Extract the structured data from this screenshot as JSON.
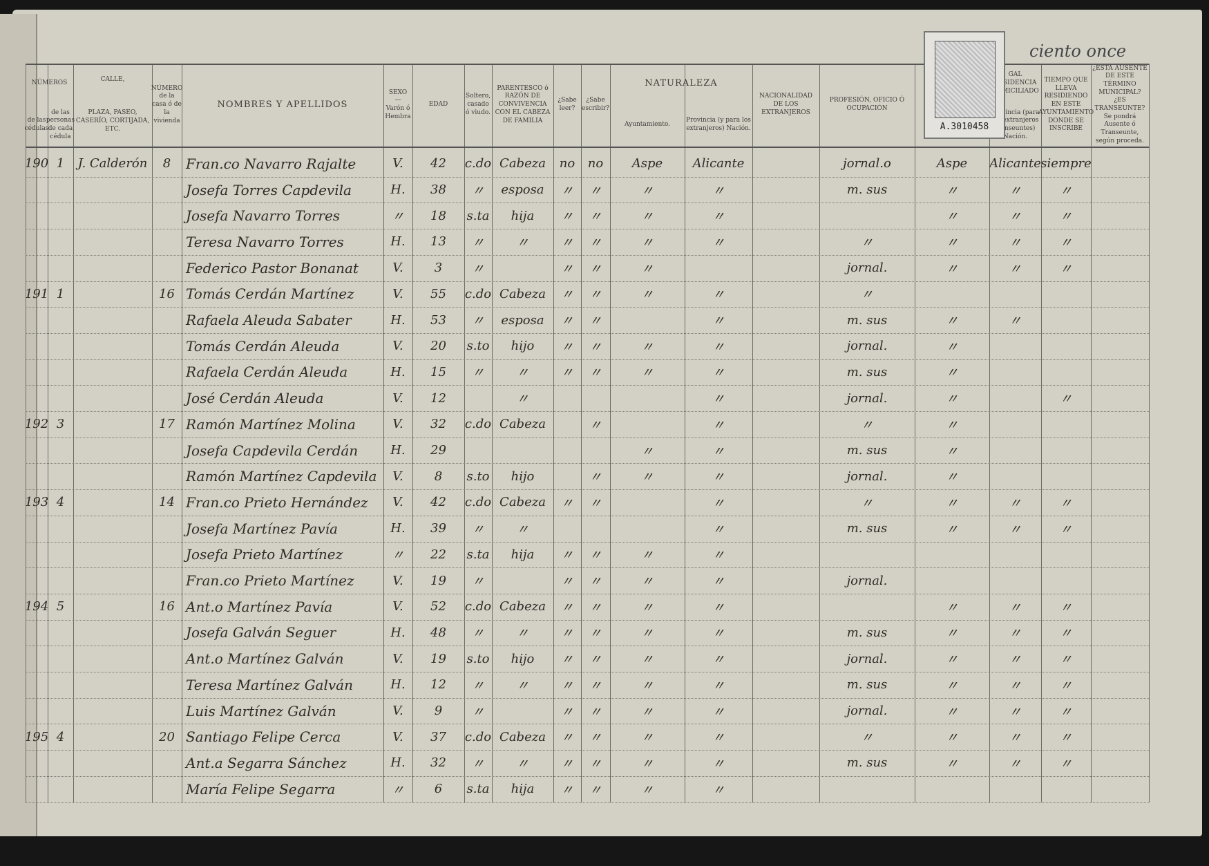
{
  "header_cells": [
    "NÚMEROS",
    "de las cédulas",
    "de las personas de cada cédula",
    "CALLE,",
    "PLAZA, PASEO, CASERÍO, CORTIJADA, ETC.",
    "NÚMERO de la casa ó de la vivienda",
    "NOMBRES Y APELLIDOS",
    "SEXO — Varón ó Hembra",
    "EDAD",
    "Soltero, casado ó viudo.",
    "PARENTESCO ó RAZÓN DE CONVIVENCIA CON EL CABEZA DE FAMILIA",
    "¿Sabe leer?",
    "¿Sabe escribir?",
    "NATURALEZA",
    "Ayuntamiento.",
    "Provincia (y para los extranjeros) Nación.",
    "NACIONALIDAD DE LOS EXTRANJEROS",
    "PROFESIÓN, OFICIO Ó OCUPACIÓN",
    "GAL RESIDENCIA DOMICILIADO",
    "Provincia (para los extranjeros transeuntes) Nación.",
    "TIEMPO QUE LLEVA RESIDIENDO EN ESTE AYUNTAMIENTO DONDE SE INSCRIBE",
    "¿ESTÁ AUSENTE DE ESTE TÉRMINO MUNICIPAL? ¿ES TRANSEUNTE? Se pondrá Ausente ó Transeunte, según proceda."
  ],
  "stamp": "A.3010458",
  "page_note": "ciento once",
  "rows": [
    [
      "190",
      "1",
      "J. Calderón",
      "8",
      "Fran.co Navarro Rajalte",
      "V.",
      "42",
      "c.do",
      "Cabeza",
      "no",
      "no",
      "Aspe",
      "Alicante",
      "jornal.o",
      "Aspe",
      "Alicante",
      "siempre"
    ],
    [
      "",
      "",
      "",
      "",
      "Josefa Torres Capdevila",
      "H.",
      "38",
      "〃",
      "esposa",
      "〃",
      "〃",
      "〃",
      "〃",
      "m. sus",
      "〃",
      "〃",
      "〃"
    ],
    [
      "",
      "",
      "",
      "",
      "Josefa Navarro Torres",
      "〃",
      "18",
      "s.ta",
      "hija",
      "〃",
      "〃",
      "〃",
      "〃",
      "",
      "〃",
      "〃",
      "〃"
    ],
    [
      "",
      "",
      "",
      "",
      "Teresa Navarro Torres",
      "H.",
      "13",
      "〃",
      "〃",
      "〃",
      "〃",
      "〃",
      "〃",
      "〃",
      "〃",
      "〃",
      "〃"
    ],
    [
      "",
      "",
      "",
      "",
      "Federico Pastor Bonanat",
      "V.",
      "3",
      "〃",
      "",
      "〃",
      "〃",
      "〃",
      "",
      "jornal.",
      "〃",
      "〃",
      "〃"
    ],
    [
      "191",
      "1",
      "",
      "16",
      "Tomás Cerdán Martínez",
      "V.",
      "55",
      "c.do",
      "Cabeza",
      "〃",
      "〃",
      "〃",
      "〃",
      "〃",
      "",
      "",
      ""
    ],
    [
      "",
      "",
      "",
      "",
      "Rafaela Aleuda Sabater",
      "H.",
      "53",
      "〃",
      "esposa",
      "〃",
      "〃",
      "",
      "〃",
      "m. sus",
      "〃",
      "〃",
      ""
    ],
    [
      "",
      "",
      "",
      "",
      "Tomás Cerdán Aleuda",
      "V.",
      "20",
      "s.to",
      "hijo",
      "〃",
      "〃",
      "〃",
      "〃",
      "jornal.",
      "〃",
      "",
      ""
    ],
    [
      "",
      "",
      "",
      "",
      "Rafaela Cerdán Aleuda",
      "H.",
      "15",
      "〃",
      "〃",
      "〃",
      "〃",
      "〃",
      "〃",
      "m. sus",
      "〃",
      "",
      ""
    ],
    [
      "",
      "",
      "",
      "",
      "José Cerdán Aleuda",
      "V.",
      "12",
      "",
      "〃",
      "",
      "",
      "",
      "〃",
      "jornal.",
      "〃",
      "",
      "〃"
    ],
    [
      "192",
      "3",
      "",
      "17",
      "Ramón Martínez Molina",
      "V.",
      "32",
      "c.do",
      "Cabeza",
      "",
      "〃",
      "",
      "〃",
      "〃",
      "〃",
      "",
      ""
    ],
    [
      "",
      "",
      "",
      "",
      "Josefa Capdevila Cerdán",
      "H.",
      "29",
      "",
      "",
      "",
      "",
      "〃",
      "〃",
      "m. sus",
      "〃",
      "",
      ""
    ],
    [
      "",
      "",
      "",
      "",
      "Ramón Martínez Capdevila",
      "V.",
      "8",
      "s.to",
      "hijo",
      "",
      "〃",
      "〃",
      "〃",
      "jornal.",
      "〃",
      "",
      ""
    ],
    [
      "193",
      "4",
      "",
      "14",
      "Fran.co Prieto Hernández",
      "V.",
      "42",
      "c.do",
      "Cabeza",
      "〃",
      "〃",
      "",
      "〃",
      "〃",
      "〃",
      "〃",
      "〃"
    ],
    [
      "",
      "",
      "",
      "",
      "Josefa Martínez Pavía",
      "H.",
      "39",
      "〃",
      "〃",
      "",
      "",
      "",
      "〃",
      "m. sus",
      "〃",
      "〃",
      "〃"
    ],
    [
      "",
      "",
      "",
      "",
      "Josefa Prieto Martínez",
      "〃",
      "22",
      "s.ta",
      "hija",
      "〃",
      "〃",
      "〃",
      "〃",
      "",
      "",
      "",
      ""
    ],
    [
      "",
      "",
      "",
      "",
      "Fran.co Prieto Martínez",
      "V.",
      "19",
      "〃",
      "",
      "〃",
      "〃",
      "〃",
      "〃",
      "jornal.",
      "",
      "",
      ""
    ],
    [
      "194",
      "5",
      "",
      "16",
      "Ant.o Martínez Pavía",
      "V.",
      "52",
      "c.do",
      "Cabeza",
      "〃",
      "〃",
      "〃",
      "〃",
      "",
      "〃",
      "〃",
      "〃"
    ],
    [
      "",
      "",
      "",
      "",
      "Josefa Galván Seguer",
      "H.",
      "48",
      "〃",
      "〃",
      "〃",
      "〃",
      "〃",
      "〃",
      "m. sus",
      "〃",
      "〃",
      "〃"
    ],
    [
      "",
      "",
      "",
      "",
      "Ant.o Martínez Galván",
      "V.",
      "19",
      "s.to",
      "hijo",
      "〃",
      "〃",
      "〃",
      "〃",
      "jornal.",
      "〃",
      "〃",
      "〃"
    ],
    [
      "",
      "",
      "",
      "",
      "Teresa Martínez Galván",
      "H.",
      "12",
      "〃",
      "〃",
      "〃",
      "〃",
      "〃",
      "〃",
      "m. sus",
      "〃",
      "〃",
      "〃"
    ],
    [
      "",
      "",
      "",
      "",
      "Luis Martínez Galván",
      "V.",
      "9",
      "〃",
      "",
      "〃",
      "〃",
      "〃",
      "〃",
      "jornal.",
      "〃",
      "〃",
      "〃"
    ],
    [
      "195",
      "4",
      "",
      "20",
      "Santiago Felipe Cerca",
      "V.",
      "37",
      "c.do",
      "Cabeza",
      "〃",
      "〃",
      "〃",
      "〃",
      "〃",
      "〃",
      "〃",
      "〃"
    ],
    [
      "",
      "",
      "",
      "",
      "Ant.a Segarra Sánchez",
      "H.",
      "32",
      "〃",
      "〃",
      "〃",
      "〃",
      "〃",
      "〃",
      "m. sus",
      "〃",
      "〃",
      "〃"
    ],
    [
      "",
      "",
      "",
      "",
      "María Felipe Segarra",
      "〃",
      "6",
      "s.ta",
      "hija",
      "〃",
      "〃",
      "〃",
      "〃",
      "",
      "",
      "",
      ""
    ]
  ]
}
